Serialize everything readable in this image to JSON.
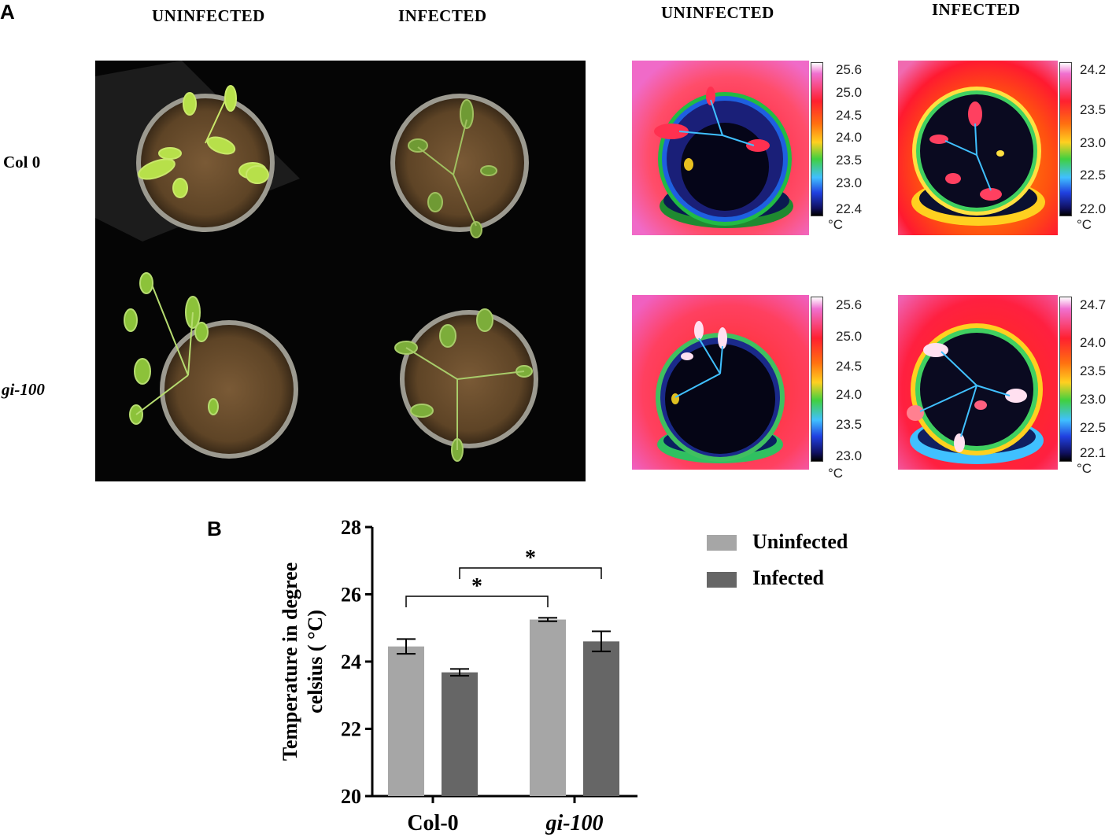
{
  "figure": {
    "panel_a": {
      "letter": "A",
      "photo_headers": [
        "UNINFECTED",
        "INFECTED"
      ],
      "thermal_headers": [
        "UNINFECTED",
        "INFECTED"
      ],
      "row_labels": [
        "Col 0",
        "gi-100"
      ],
      "thermal_scales": [
        {
          "ticks": [
            "25.6",
            "25.0",
            "24.5",
            "24.0",
            "23.5",
            "23.0",
            "22.4"
          ],
          "unit": "°C"
        },
        {
          "ticks": [
            "24.2",
            "23.5",
            "23.0",
            "22.5",
            "22.0"
          ],
          "unit": "°C"
        },
        {
          "ticks": [
            "25.6",
            "25.0",
            "24.5",
            "24.0",
            "23.5",
            "23.0"
          ],
          "unit": "°C"
        },
        {
          "ticks": [
            "24.7",
            "24.0",
            "23.5",
            "23.0",
            "22.5",
            "22.1"
          ],
          "unit": "°C"
        }
      ]
    },
    "panel_b": {
      "letter": "B"
    }
  },
  "chart_data": {
    "type": "bar",
    "categories": [
      "Col-0",
      "gi-100"
    ],
    "series": [
      {
        "name": "Uninfected",
        "values": [
          24.45,
          25.25
        ],
        "errors": [
          0.22,
          0.05
        ],
        "color": "#a6a6a6"
      },
      {
        "name": "Infected",
        "values": [
          23.68,
          24.6
        ],
        "errors": [
          0.1,
          0.3
        ],
        "color": "#666666"
      }
    ],
    "ylabel": "Temperature in degree celsius ( °C)",
    "ylim": [
      20,
      28
    ],
    "yticks": [
      "20",
      "22",
      "24",
      "26",
      "28"
    ],
    "legend": "top-right",
    "significance": [
      {
        "from": "Col-0 Uninfected",
        "to": "gi-100 Uninfected",
        "label": "*"
      },
      {
        "from": "Col-0 Infected",
        "to": "gi-100 Infected",
        "label": "*"
      }
    ]
  }
}
